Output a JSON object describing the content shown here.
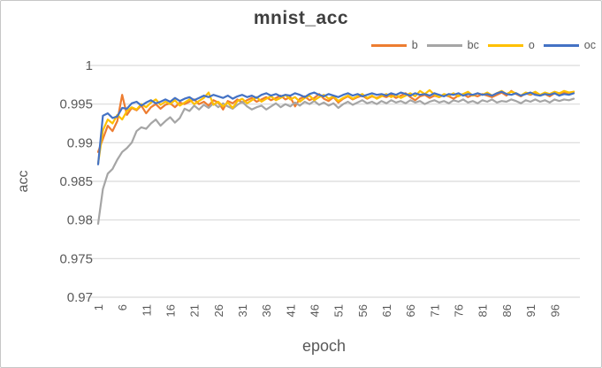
{
  "window": {
    "background": "#ffffff",
    "border_color": "#c6c6c6"
  },
  "styles": {
    "title_color": "#3f3f3f",
    "axis_text_color": "#595959",
    "grid_color": "#d9d9d9"
  },
  "chart_data": {
    "type": "line",
    "title": "mnist_acc",
    "xlabel": "epoch",
    "ylabel": "acc",
    "ylim": [
      0.97,
      1.0
    ],
    "grid": "horizontal",
    "legend_position": "top-right",
    "ytick_values": [
      1,
      0.995,
      0.99,
      0.985,
      0.98,
      0.975,
      0.97
    ],
    "ytick_labels": [
      "1",
      "0.995",
      "0.99",
      "0.985",
      "0.98",
      "0.975",
      "0.97"
    ],
    "xtick_values": [
      1,
      6,
      11,
      16,
      21,
      26,
      31,
      36,
      41,
      46,
      51,
      56,
      61,
      66,
      71,
      76,
      81,
      86,
      91,
      96
    ],
    "x": [
      1,
      2,
      3,
      4,
      5,
      6,
      7,
      8,
      9,
      10,
      11,
      12,
      13,
      14,
      15,
      16,
      17,
      18,
      19,
      20,
      21,
      22,
      23,
      24,
      25,
      26,
      27,
      28,
      29,
      30,
      31,
      32,
      33,
      34,
      35,
      36,
      37,
      38,
      39,
      40,
      41,
      42,
      43,
      44,
      45,
      46,
      47,
      48,
      49,
      50,
      51,
      52,
      53,
      54,
      55,
      56,
      57,
      58,
      59,
      60,
      61,
      62,
      63,
      64,
      65,
      66,
      67,
      68,
      69,
      70,
      71,
      72,
      73,
      74,
      75,
      76,
      77,
      78,
      79,
      80,
      81,
      82,
      83,
      84,
      85,
      86,
      87,
      88,
      89,
      90,
      91,
      92,
      93,
      94,
      95,
      96,
      97,
      98,
      99,
      100
    ],
    "series": [
      {
        "name": "b",
        "color": "#ED7D31",
        "values": [
          0.9888,
          0.9905,
          0.9922,
          0.9915,
          0.9928,
          0.9962,
          0.9936,
          0.9945,
          0.9942,
          0.9948,
          0.9938,
          0.9946,
          0.995,
          0.9944,
          0.9949,
          0.9951,
          0.9946,
          0.9952,
          0.995,
          0.9953,
          0.9956,
          0.995,
          0.9953,
          0.9948,
          0.9955,
          0.9952,
          0.9943,
          0.9954,
          0.9951,
          0.9956,
          0.9952,
          0.9955,
          0.9958,
          0.9953,
          0.9956,
          0.9959,
          0.9955,
          0.9958,
          0.9961,
          0.9956,
          0.9959,
          0.9947,
          0.9957,
          0.996,
          0.9955,
          0.9958,
          0.9963,
          0.9957,
          0.9954,
          0.9959,
          0.9952,
          0.9957,
          0.996,
          0.9956,
          0.9959,
          0.9961,
          0.9957,
          0.996,
          0.9958,
          0.9961,
          0.9959,
          0.9962,
          0.9958,
          0.9961,
          0.9964,
          0.9959,
          0.9955,
          0.996,
          0.9962,
          0.9958,
          0.9961,
          0.9959,
          0.9962,
          0.996,
          0.9957,
          0.9961,
          0.9963,
          0.9959,
          0.9962,
          0.996,
          0.9963,
          0.9961,
          0.9959,
          0.9962,
          0.9965,
          0.9961,
          0.9967,
          0.9963,
          0.996,
          0.9964,
          0.9962,
          0.9965,
          0.9961,
          0.9963,
          0.996,
          0.9964,
          0.9962,
          0.9965,
          0.9963,
          0.9966
        ]
      },
      {
        "name": "bc",
        "color": "#A5A5A5",
        "values": [
          0.9795,
          0.984,
          0.986,
          0.9866,
          0.9878,
          0.9888,
          0.9893,
          0.99,
          0.9915,
          0.992,
          0.9918,
          0.9925,
          0.993,
          0.9922,
          0.9928,
          0.9933,
          0.9926,
          0.9932,
          0.9944,
          0.9941,
          0.9948,
          0.9943,
          0.9949,
          0.9945,
          0.9951,
          0.9946,
          0.9951,
          0.9947,
          0.9944,
          0.9949,
          0.9953,
          0.9947,
          0.9943,
          0.9946,
          0.9948,
          0.9943,
          0.9947,
          0.9951,
          0.9946,
          0.995,
          0.9947,
          0.9952,
          0.9948,
          0.9953,
          0.995,
          0.9954,
          0.9949,
          0.9952,
          0.9948,
          0.9951,
          0.9945,
          0.995,
          0.9953,
          0.9949,
          0.9952,
          0.9955,
          0.9951,
          0.9953,
          0.995,
          0.9954,
          0.9951,
          0.9955,
          0.9952,
          0.9954,
          0.9951,
          0.9955,
          0.9952,
          0.9954,
          0.995,
          0.9953,
          0.9955,
          0.9952,
          0.9954,
          0.9951,
          0.9955,
          0.9953,
          0.9956,
          0.9952,
          0.9954,
          0.9951,
          0.9955,
          0.9953,
          0.9956,
          0.9952,
          0.9954,
          0.9953,
          0.9956,
          0.9954,
          0.9951,
          0.9955,
          0.9953,
          0.9956,
          0.9953,
          0.9955,
          0.9952,
          0.9956,
          0.9954,
          0.9956,
          0.9955,
          0.9957
        ]
      },
      {
        "name": "o",
        "color": "#FFC000",
        "values": [
          0.9873,
          0.9916,
          0.993,
          0.9925,
          0.9936,
          0.993,
          0.9941,
          0.9946,
          0.9943,
          0.995,
          0.9946,
          0.9952,
          0.9956,
          0.9949,
          0.9953,
          0.995,
          0.9955,
          0.9948,
          0.9952,
          0.9956,
          0.995,
          0.9954,
          0.9958,
          0.9965,
          0.9949,
          0.9953,
          0.9947,
          0.9952,
          0.9945,
          0.9954,
          0.9957,
          0.9951,
          0.9955,
          0.9959,
          0.9953,
          0.9957,
          0.996,
          0.9955,
          0.9958,
          0.9962,
          0.9956,
          0.9959,
          0.9953,
          0.9958,
          0.9961,
          0.9955,
          0.9959,
          0.9962,
          0.9957,
          0.996,
          0.9954,
          0.9958,
          0.9961,
          0.9957,
          0.996,
          0.9963,
          0.9958,
          0.9961,
          0.9957,
          0.996,
          0.9963,
          0.9959,
          0.9962,
          0.9958,
          0.9961,
          0.9964,
          0.996,
          0.9967,
          0.9963,
          0.9968,
          0.9962,
          0.9959,
          0.9963,
          0.9961,
          0.9964,
          0.996,
          0.9963,
          0.9966,
          0.9961,
          0.9964,
          0.9962,
          0.9965,
          0.9961,
          0.9964,
          0.9967,
          0.9963,
          0.9966,
          0.9964,
          0.9961,
          0.9965,
          0.9963,
          0.9966,
          0.9962,
          0.9965,
          0.9963,
          0.9966,
          0.9964,
          0.9967,
          0.9965,
          0.9966
        ]
      },
      {
        "name": "oc",
        "color": "#4472C4",
        "values": [
          0.9872,
          0.9935,
          0.9938,
          0.9932,
          0.9934,
          0.9945,
          0.9944,
          0.9951,
          0.9953,
          0.9948,
          0.9952,
          0.9955,
          0.9951,
          0.9953,
          0.9956,
          0.9953,
          0.9958,
          0.9954,
          0.9957,
          0.9959,
          0.9955,
          0.9958,
          0.9961,
          0.9959,
          0.9962,
          0.996,
          0.9958,
          0.9961,
          0.9957,
          0.996,
          0.9962,
          0.9959,
          0.9961,
          0.9958,
          0.9962,
          0.9964,
          0.9961,
          0.9963,
          0.996,
          0.9962,
          0.9961,
          0.9964,
          0.9962,
          0.9959,
          0.9963,
          0.9965,
          0.9962,
          0.996,
          0.9963,
          0.9961,
          0.9959,
          0.9962,
          0.9964,
          0.9961,
          0.9963,
          0.996,
          0.9962,
          0.9964,
          0.9962,
          0.9963,
          0.9961,
          0.9964,
          0.9962,
          0.9965,
          0.9963,
          0.9961,
          0.9964,
          0.9962,
          0.9963,
          0.9961,
          0.9964,
          0.9962,
          0.996,
          0.9963,
          0.9962,
          0.9964,
          0.9961,
          0.9963,
          0.9962,
          0.9964,
          0.9962,
          0.9963,
          0.9961,
          0.9964,
          0.9966,
          0.9963,
          0.9962,
          0.9964,
          0.9961,
          0.9963,
          0.9965,
          0.9962,
          0.9961,
          0.9963,
          0.9962,
          0.9964,
          0.9961,
          0.9963,
          0.9962,
          0.9964
        ]
      }
    ]
  }
}
